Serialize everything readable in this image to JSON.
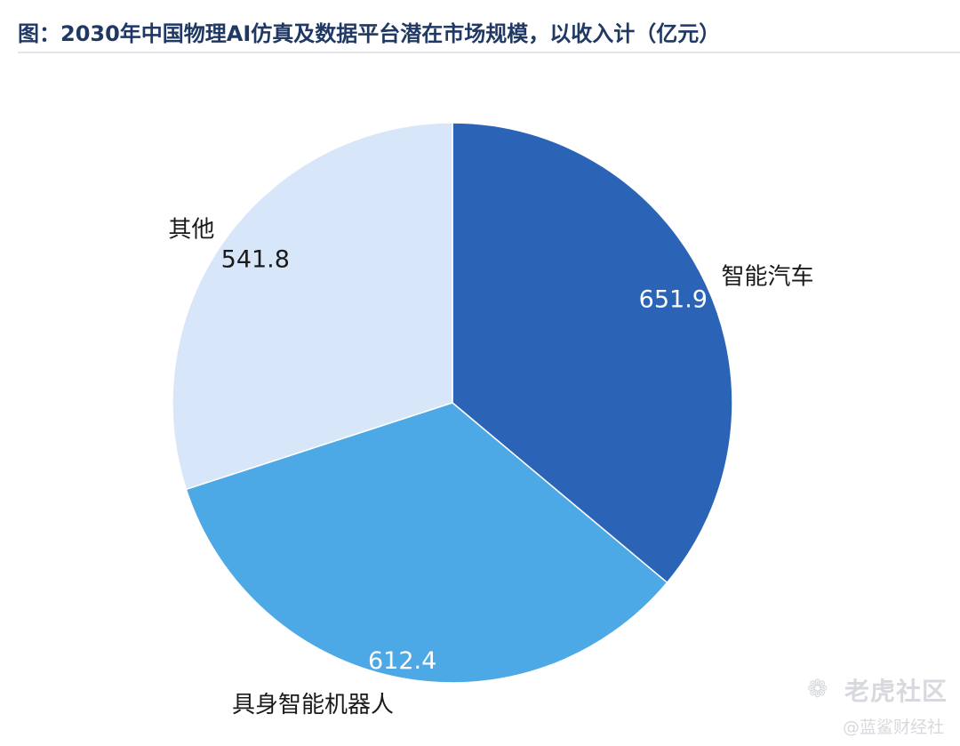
{
  "chart_data": {
    "type": "pie",
    "title": "图：2030年中国物理AI仿真及数据平台潜在市场规模，以收入计（亿元）",
    "slices": [
      {
        "name": "智能汽车",
        "value": 651.9,
        "label": "651.9",
        "color": "#2b63b6"
      },
      {
        "name": "具身智能机器人",
        "value": 612.4,
        "label": "612.4",
        "color": "#4da8e6"
      },
      {
        "name": "其他",
        "value": 541.8,
        "label": "541.8",
        "color": "#d8e6fa"
      }
    ],
    "start_angle_deg": 0,
    "direction": "clockwise",
    "legend": "none"
  },
  "watermark": {
    "logo_icon": "tiger-brand-icon",
    "main_text": "老虎社区",
    "sub_text": "@蓝鲨财经社"
  }
}
